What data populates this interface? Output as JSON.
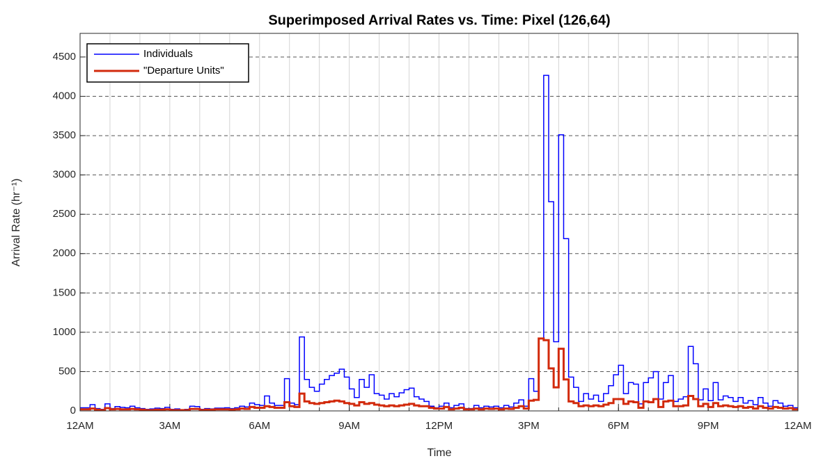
{
  "chart_data": {
    "type": "stairs",
    "title": "Superimposed Arrival Rates vs. Time: Pixel (126,64)",
    "xlabel": "Time",
    "ylabel": "Arrival Rate (hr⁻¹)",
    "x": [
      0,
      10,
      20,
      30,
      40,
      50,
      60,
      70,
      80,
      90,
      100,
      110,
      120,
      130,
      140,
      150,
      160,
      170,
      180,
      190,
      200,
      210,
      220,
      230,
      240,
      250,
      260,
      270,
      280,
      290,
      300,
      310,
      320,
      330,
      340,
      350,
      360,
      370,
      380,
      390,
      400,
      410,
      420,
      430,
      440,
      450,
      460,
      470,
      480,
      490,
      500,
      510,
      520,
      530,
      540,
      550,
      560,
      570,
      580,
      590,
      600,
      610,
      620,
      630,
      640,
      650,
      660,
      670,
      680,
      690,
      700,
      710,
      720,
      730,
      740,
      750,
      760,
      770,
      780,
      790,
      800,
      810,
      820,
      830,
      840,
      850,
      860,
      870,
      880,
      890,
      900,
      910,
      920,
      930,
      940,
      950,
      960,
      970,
      980,
      990,
      1000,
      1010,
      1020,
      1030,
      1040,
      1050,
      1060,
      1070,
      1080,
      1090,
      1100,
      1110,
      1120,
      1130,
      1140,
      1150,
      1160,
      1170,
      1180,
      1190,
      1200,
      1210,
      1220,
      1230,
      1240,
      1250,
      1260,
      1270,
      1280,
      1290,
      1300,
      1310,
      1320,
      1330,
      1340,
      1350,
      1360,
      1370,
      1380,
      1390,
      1400,
      1410,
      1420,
      1430
    ],
    "series": [
      {
        "name": "Individuals",
        "color": "#0000ff",
        "width": 1.5,
        "values": [
          40,
          40,
          80,
          30,
          20,
          90,
          30,
          55,
          45,
          40,
          60,
          40,
          30,
          20,
          25,
          35,
          30,
          45,
          20,
          25,
          15,
          20,
          60,
          55,
          20,
          30,
          25,
          35,
          35,
          40,
          30,
          40,
          60,
          50,
          100,
          80,
          70,
          190,
          100,
          70,
          70,
          410,
          100,
          80,
          940,
          400,
          300,
          250,
          340,
          400,
          450,
          480,
          530,
          430,
          280,
          170,
          400,
          300,
          460,
          220,
          200,
          150,
          220,
          180,
          230,
          270,
          290,
          180,
          150,
          120,
          60,
          40,
          60,
          100,
          40,
          70,
          90,
          30,
          30,
          70,
          40,
          60,
          50,
          60,
          40,
          70,
          50,
          100,
          140,
          60,
          410,
          250,
          920,
          4266,
          2660,
          880,
          3510,
          2190,
          430,
          300,
          120,
          220,
          150,
          200,
          120,
          220,
          320,
          460,
          580,
          220,
          360,
          340,
          90,
          360,
          420,
          500,
          150,
          360,
          450,
          120,
          150,
          180,
          820,
          600,
          140,
          280,
          130,
          360,
          140,
          190,
          170,
          120,
          170,
          100,
          130,
          80,
          170,
          100,
          60,
          130,
          100,
          60,
          70,
          40
        ]
      },
      {
        "name": "\"Departure Units\"",
        "color": "#d22a0c",
        "width": 3,
        "values": [
          20,
          20,
          30,
          15,
          10,
          35,
          20,
          25,
          20,
          20,
          25,
          20,
          15,
          10,
          10,
          15,
          15,
          20,
          10,
          10,
          10,
          10,
          25,
          25,
          10,
          15,
          15,
          20,
          20,
          20,
          15,
          20,
          30,
          25,
          50,
          40,
          40,
          60,
          50,
          40,
          40,
          110,
          60,
          50,
          220,
          120,
          100,
          90,
          100,
          110,
          120,
          130,
          120,
          100,
          90,
          70,
          110,
          90,
          100,
          80,
          70,
          60,
          70,
          60,
          70,
          80,
          90,
          70,
          60,
          60,
          40,
          30,
          30,
          50,
          20,
          30,
          40,
          20,
          20,
          30,
          20,
          30,
          25,
          30,
          20,
          30,
          25,
          40,
          60,
          30,
          130,
          140,
          920,
          900,
          540,
          300,
          790,
          400,
          120,
          100,
          60,
          70,
          60,
          70,
          60,
          80,
          100,
          150,
          150,
          90,
          120,
          110,
          40,
          120,
          110,
          150,
          50,
          120,
          130,
          60,
          60,
          70,
          190,
          150,
          60,
          90,
          50,
          100,
          60,
          70,
          60,
          50,
          60,
          40,
          50,
          30,
          60,
          40,
          30,
          50,
          40,
          30,
          35,
          20
        ]
      }
    ],
    "xlim": [
      0,
      1440
    ],
    "xticks": [
      {
        "value": 0,
        "label": "12AM"
      },
      {
        "value": 180,
        "label": "3AM"
      },
      {
        "value": 360,
        "label": "6AM"
      },
      {
        "value": 540,
        "label": "9AM"
      },
      {
        "value": 720,
        "label": "12PM"
      },
      {
        "value": 900,
        "label": "3PM"
      },
      {
        "value": 1080,
        "label": "6PM"
      },
      {
        "value": 1260,
        "label": "9PM"
      },
      {
        "value": 1440,
        "label": "12AM"
      }
    ],
    "xminorticks": [
      0,
      60,
      120,
      180,
      240,
      300,
      360,
      420,
      480,
      540,
      600,
      660,
      720,
      780,
      840,
      900,
      960,
      1020,
      1080,
      1140,
      1200,
      1260,
      1320,
      1380,
      1440
    ],
    "ylim": [
      0,
      4800
    ],
    "yticks": [
      0,
      500,
      1000,
      1500,
      2000,
      2500,
      3000,
      3500,
      4000,
      4500
    ],
    "grid": true,
    "legend": "upper left"
  }
}
